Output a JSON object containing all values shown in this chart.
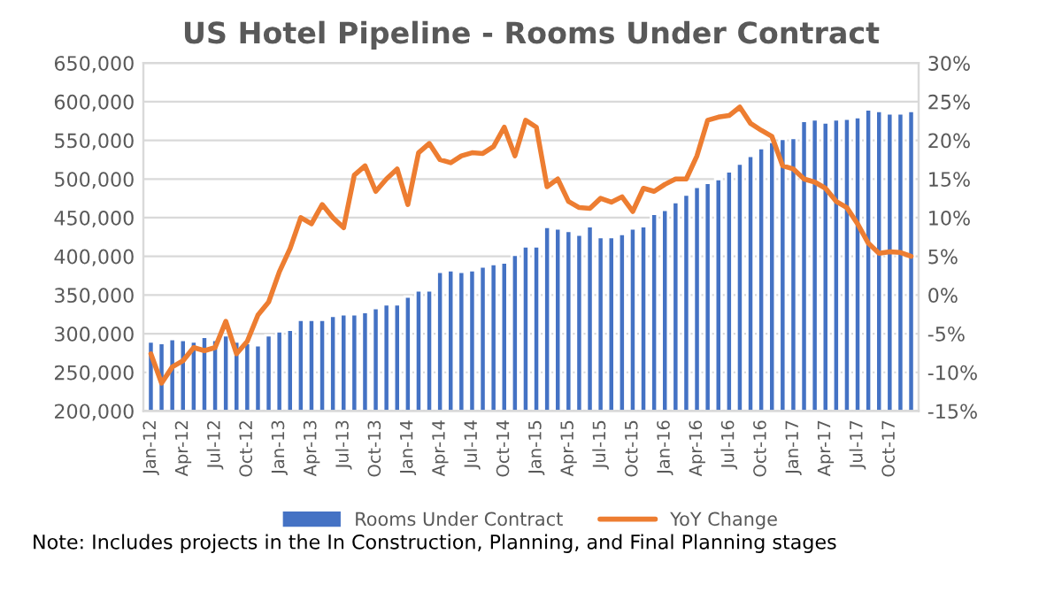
{
  "chart_data": {
    "type": "bar",
    "title": "US Hotel Pipeline - Rooms Under Contract",
    "categories": [
      "Jan-12",
      null,
      null,
      "Apr-12",
      null,
      null,
      "Jul-12",
      null,
      null,
      "Oct-12",
      null,
      null,
      "Jan-13",
      null,
      null,
      "Apr-13",
      null,
      null,
      "Jul-13",
      null,
      null,
      "Oct-13",
      null,
      null,
      "Jan-14",
      null,
      null,
      "Apr-14",
      null,
      null,
      "Jul-14",
      null,
      null,
      "Oct-14",
      null,
      null,
      "Jan-15",
      null,
      null,
      "Apr-15",
      null,
      null,
      "Jul-15",
      null,
      null,
      "Oct-15",
      null,
      null,
      "Jan-16",
      null,
      null,
      "Apr-16",
      null,
      null,
      "Jul-16",
      null,
      null,
      "Oct-16",
      null,
      null,
      "Jan-17",
      null,
      null,
      "Apr-17",
      null,
      null,
      "Jul-17",
      null,
      null,
      "Oct-17",
      null,
      null
    ],
    "series": [
      {
        "name": "Rooms Under Contract",
        "color": "#4472c4",
        "values": [
          290000,
          288000,
          293000,
          292000,
          290000,
          296000,
          292000,
          298000,
          290000,
          288000,
          285000,
          298000,
          303000,
          305000,
          318000,
          318000,
          318000,
          323000,
          325000,
          325000,
          328000,
          333000,
          338000,
          338000,
          348000,
          356000,
          356000,
          380000,
          382000,
          380000,
          382000,
          387000,
          390000,
          392000,
          402000,
          413000,
          413000,
          438000,
          436000,
          433000,
          428000,
          439000,
          425000,
          425000,
          429000,
          436000,
          439000,
          455000,
          460000,
          470000,
          480000,
          490000,
          495000,
          500000,
          510000,
          520000,
          530000,
          540000,
          548000,
          552000,
          553000,
          575000,
          577000,
          573000,
          577000,
          578000,
          580000,
          590000,
          588000,
          585000,
          585000,
          588000
        ]
      },
      {
        "name": "YoY Change",
        "type": "line",
        "axis": "y2",
        "color": "#ed7d31",
        "values": [
          -7.6,
          -11.4,
          -9.3,
          -8.5,
          -6.8,
          -7.2,
          -6.8,
          -3.4,
          -7.6,
          -6,
          -2.6,
          -0.9,
          3,
          6,
          10,
          9.2,
          11.7,
          10,
          8.7,
          15.5,
          16.7,
          13.4,
          15,
          16.3,
          11.7,
          18.4,
          19.6,
          17.5,
          17.1,
          18,
          18.4,
          18.3,
          19.2,
          21.7,
          18,
          22.6,
          21.7,
          14,
          15,
          12.1,
          11.3,
          11.2,
          12.5,
          12,
          12.7,
          10.8,
          13.8,
          13.4,
          14.3,
          15,
          15,
          18,
          22.6,
          23,
          23.2,
          24.3,
          22.2,
          21.3,
          20.5,
          16.7,
          16.3,
          15,
          14.6,
          13.8,
          12.1,
          11.3,
          9.2,
          6.7,
          5.4,
          5.6,
          5.5,
          5
        ]
      }
    ],
    "ylim": [
      200000,
      650000
    ],
    "yticks": [
      {
        "value": 200000,
        "label": "200,000"
      },
      {
        "value": 250000,
        "label": "250,000"
      },
      {
        "value": 300000,
        "label": "300,000"
      },
      {
        "value": 350000,
        "label": "350,000"
      },
      {
        "value": 400000,
        "label": "400,000"
      },
      {
        "value": 450000,
        "label": "450,000"
      },
      {
        "value": 500000,
        "label": "500,000"
      },
      {
        "value": 550000,
        "label": "550,000"
      },
      {
        "value": 600000,
        "label": "600,000"
      },
      {
        "value": 650000,
        "label": "650,000"
      }
    ],
    "y2lim": [
      -15,
      30
    ],
    "y2ticks": [
      {
        "value": -15,
        "label": "-15%"
      },
      {
        "value": -10,
        "label": "-10%"
      },
      {
        "value": -5,
        "label": "-5%"
      },
      {
        "value": 0,
        "label": "0%"
      },
      {
        "value": 5,
        "label": "5%"
      },
      {
        "value": 10,
        "label": "10%"
      },
      {
        "value": 15,
        "label": "15%"
      },
      {
        "value": 20,
        "label": "20%"
      },
      {
        "value": 25,
        "label": "25%"
      },
      {
        "value": 30,
        "label": "30%"
      }
    ],
    "grid": "y",
    "legend": "bottom",
    "annotations": [
      "Note: Includes projects in the In Construction, Planning, and Final Planning stages"
    ]
  }
}
